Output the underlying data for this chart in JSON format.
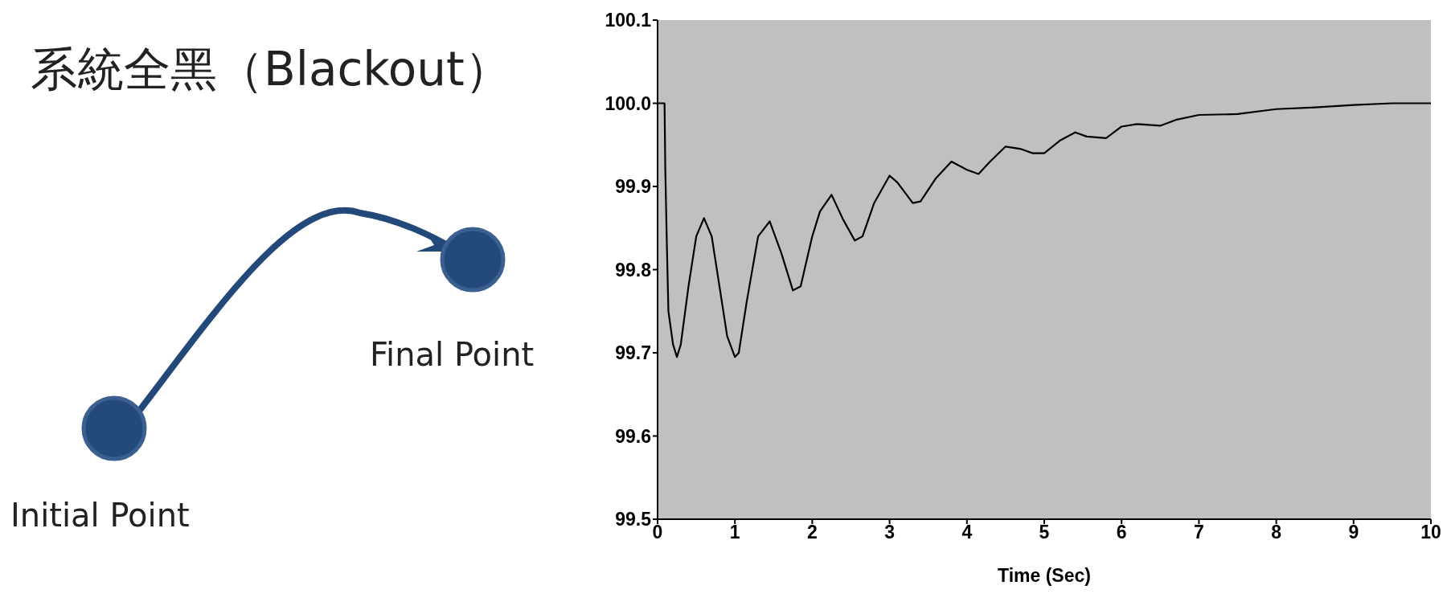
{
  "chart_data": {
    "type": "line",
    "title": "系統全黑（Blackout）",
    "xlabel": "Time (Sec)",
    "annotations": [
      "Final Point",
      "Initial Point"
    ],
    "xlim": [
      0,
      10
    ],
    "xticks": [
      0,
      1,
      2,
      3,
      4,
      5,
      6,
      7,
      8,
      9,
      10
    ],
    "ylim": [
      99.5,
      100.1
    ],
    "yticks": [
      {
        "value": 99.5,
        "label": "99.5"
      },
      {
        "value": 99.6,
        "label": "99.6"
      },
      {
        "value": 99.7,
        "label": "99.7"
      },
      {
        "value": 99.8,
        "label": "99.8"
      },
      {
        "value": 99.9,
        "label": "99.9"
      },
      {
        "value": 100,
        "label": "100.0"
      },
      {
        "value": 100.1,
        "label": "100.1"
      }
    ],
    "marker": "none",
    "line_style": "solid",
    "x": [
      0,
      0.09,
      0.1,
      0.12,
      0.14,
      0.2,
      0.25,
      0.3,
      0.4,
      0.5,
      0.6,
      0.7,
      0.8,
      0.9,
      1.0,
      1.05,
      1.15,
      1.3,
      1.45,
      1.6,
      1.75,
      1.85,
      2.0,
      2.1,
      2.25,
      2.4,
      2.55,
      2.65,
      2.8,
      3.0,
      3.1,
      3.3,
      3.4,
      3.6,
      3.8,
      4.0,
      4.15,
      4.3,
      4.5,
      4.7,
      4.85,
      5.0,
      5.2,
      5.4,
      5.55,
      5.8,
      6.0,
      6.2,
      6.5,
      6.7,
      7.0,
      7.5,
      8.0,
      8.5,
      9.0,
      9.5,
      10
    ],
    "series": [
      {
        "color": "#000000",
        "values": [
          100.0,
          100.0,
          99.92,
          99.83,
          99.75,
          99.71,
          99.695,
          99.71,
          99.78,
          99.84,
          99.862,
          99.84,
          99.78,
          99.72,
          99.695,
          99.7,
          99.76,
          99.84,
          99.858,
          99.82,
          99.775,
          99.78,
          99.84,
          99.87,
          99.89,
          99.86,
          99.835,
          99.84,
          99.88,
          99.913,
          99.905,
          99.88,
          99.882,
          99.91,
          99.93,
          99.92,
          99.915,
          99.93,
          99.948,
          99.945,
          99.94,
          99.94,
          99.955,
          99.965,
          99.96,
          99.958,
          99.972,
          99.975,
          99.973,
          99.98,
          99.986,
          99.987,
          99.993,
          99.995,
          99.998,
          100.0,
          100.0
        ]
      }
    ]
  }
}
